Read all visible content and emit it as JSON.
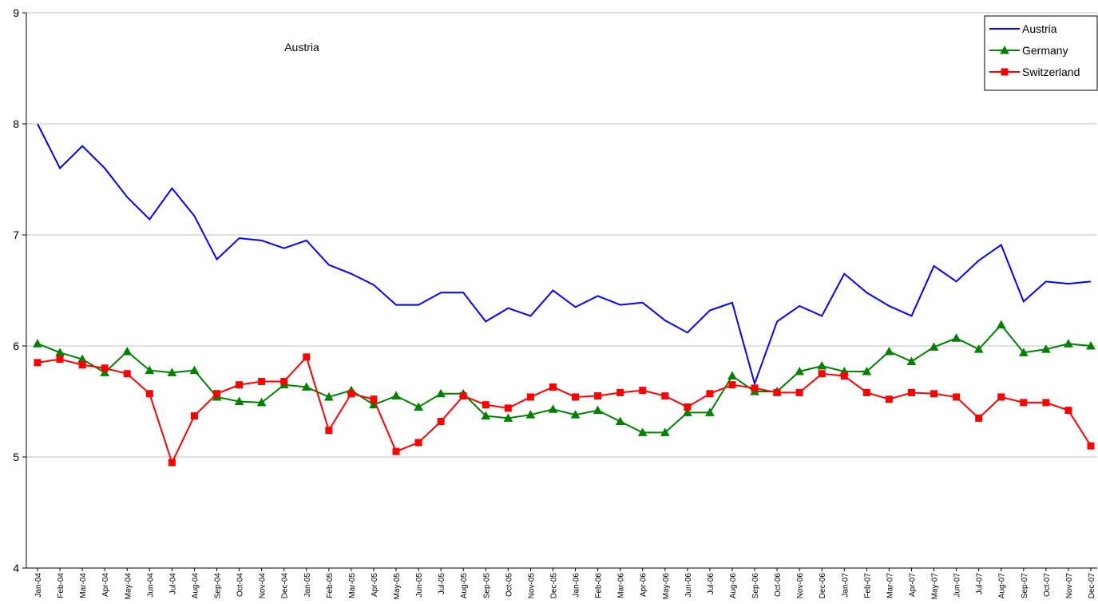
{
  "chart_data": {
    "type": "line",
    "annotation": "Austria",
    "categories": [
      "Jan-04",
      "Feb-04",
      "Mar-04",
      "Apr-04",
      "May-04",
      "Jun-04",
      "Jul-04",
      "Aug-04",
      "Sep-04",
      "Oct-04",
      "Nov-04",
      "Dec-04",
      "Jan-05",
      "Feb-05",
      "Mar-05",
      "Apr-05",
      "May-05",
      "Jun-05",
      "Jul-05",
      "Aug-05",
      "Sep-05",
      "Oct-05",
      "Nov-05",
      "Dec-05",
      "Jan-06",
      "Feb-06",
      "Mar-06",
      "Apr-06",
      "May-06",
      "Jun-06",
      "Jul-06",
      "Aug-06",
      "Sep-06",
      "Oct-06",
      "Nov-06",
      "Dec-06",
      "Jan-07",
      "Feb-07",
      "Mar-07",
      "Apr-07",
      "May-07",
      "Jun-07",
      "Jul-07",
      "Aug-07",
      "Sep-07",
      "Oct-07",
      "Nov-07",
      "Dec-07"
    ],
    "series": [
      {
        "name": "Austria",
        "color": "#0000ff",
        "marker": "none",
        "values": [
          8.0,
          7.6,
          7.8,
          7.6,
          7.34,
          7.14,
          7.42,
          7.17,
          6.78,
          6.97,
          6.95,
          6.88,
          6.95,
          6.73,
          6.65,
          6.55,
          6.37,
          6.37,
          6.48,
          6.48,
          6.22,
          6.34,
          6.27,
          6.5,
          6.35,
          6.45,
          6.37,
          6.39,
          6.23,
          6.12,
          6.32,
          6.39,
          5.66,
          6.22,
          6.36,
          6.27,
          6.65,
          6.48,
          6.36,
          6.27,
          6.72,
          6.58,
          6.77,
          6.91,
          6.4,
          6.58,
          6.56,
          6.58
        ]
      },
      {
        "name": "Germany",
        "color": "#008000",
        "marker": "triangle",
        "values": [
          6.02,
          5.94,
          5.88,
          5.76,
          5.95,
          5.78,
          5.76,
          5.78,
          5.54,
          5.5,
          5.49,
          5.65,
          5.63,
          5.54,
          5.6,
          5.47,
          5.55,
          5.45,
          5.57,
          5.57,
          5.37,
          5.35,
          5.38,
          5.43,
          5.38,
          5.42,
          5.32,
          5.22,
          5.22,
          5.4,
          5.4,
          5.73,
          5.59,
          5.59,
          5.77,
          5.82,
          5.77,
          5.77,
          5.95,
          5.86,
          5.99,
          6.07,
          5.97,
          6.19,
          5.94,
          5.97,
          6.02,
          6.0
        ]
      },
      {
        "name": "Switzerland",
        "color": "#ff0000",
        "marker": "square",
        "values": [
          5.85,
          5.88,
          5.83,
          5.8,
          5.75,
          5.57,
          4.95,
          5.37,
          5.57,
          5.65,
          5.68,
          5.68,
          5.9,
          5.24,
          5.57,
          5.52,
          5.05,
          5.13,
          5.32,
          5.55,
          5.47,
          5.44,
          5.54,
          5.63,
          5.54,
          5.55,
          5.58,
          5.6,
          5.55,
          5.45,
          5.57,
          5.65,
          5.62,
          5.58,
          5.58,
          5.75,
          5.73,
          5.58,
          5.52,
          5.58,
          5.57,
          5.54,
          5.35,
          5.54,
          5.49,
          5.49,
          5.42,
          5.1
        ]
      }
    ],
    "ylim": [
      4,
      9
    ],
    "yticks": [
      4,
      5,
      6,
      7,
      8,
      9
    ],
    "grid": true,
    "legend": "top-right"
  }
}
